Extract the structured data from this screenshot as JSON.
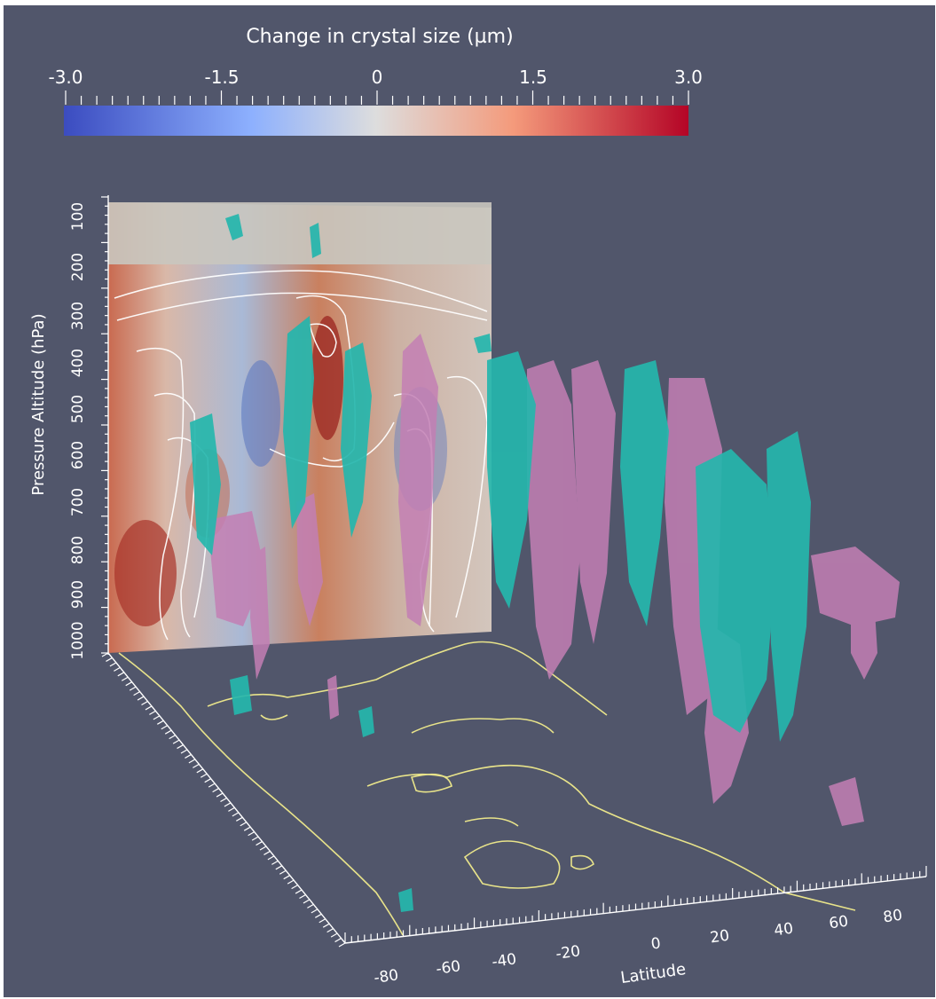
{
  "colorbar": {
    "title": "Change in crystal size (µm)",
    "tick_labels": [
      "-3.0",
      "-1.5",
      "0",
      "1.5",
      "3.0"
    ],
    "colors": [
      "#3b4cc0",
      "#8db0fe",
      "#dddddd",
      "#f49a7b",
      "#b40426"
    ]
  },
  "axes": {
    "y_label": "Pressure Altitude (hPa)",
    "y_ticks": [
      "100",
      "200",
      "300",
      "400",
      "500",
      "600",
      "700",
      "800",
      "900",
      "1000"
    ],
    "x_label": "Latitude",
    "x_ticks": [
      "-80",
      "-60",
      "-40",
      "-20",
      "0",
      "20",
      "40",
      "60",
      "80"
    ]
  },
  "colors": {
    "background": "#51566b",
    "isosurface_positive": "#25b6ad",
    "isosurface_negative": "#c37fb4",
    "coastline": "#e8e38a",
    "contour": "#ffffff"
  }
}
